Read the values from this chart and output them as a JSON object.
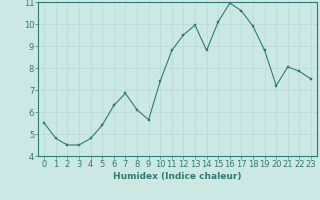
{
  "x": [
    0,
    1,
    2,
    3,
    4,
    5,
    6,
    7,
    8,
    9,
    10,
    11,
    12,
    13,
    14,
    15,
    16,
    17,
    18,
    19,
    20,
    21,
    22,
    23
  ],
  "y": [
    5.5,
    4.8,
    4.5,
    4.5,
    4.8,
    5.4,
    6.3,
    6.85,
    6.1,
    5.65,
    7.4,
    8.8,
    9.5,
    9.95,
    8.8,
    10.1,
    10.95,
    10.6,
    9.9,
    8.8,
    7.2,
    8.05,
    7.85,
    7.5
  ],
  "xlabel": "Humidex (Indice chaleur)",
  "xlim": [
    -0.5,
    23.5
  ],
  "ylim": [
    4,
    11
  ],
  "xticks": [
    0,
    1,
    2,
    3,
    4,
    5,
    6,
    7,
    8,
    9,
    10,
    11,
    12,
    13,
    14,
    15,
    16,
    17,
    18,
    19,
    20,
    21,
    22,
    23
  ],
  "yticks": [
    4,
    5,
    6,
    7,
    8,
    9,
    10,
    11
  ],
  "line_color": "#2d7d6e",
  "marker_color": "#2d7d6e",
  "bg_color": "#cce8e4",
  "grid_color": "#b8d8d4",
  "axis_color": "#2d7d6e",
  "tick_color": "#2d7d6e",
  "label_color": "#2d7d6e",
  "font_size": 6.0,
  "xlabel_fontsize": 6.5
}
